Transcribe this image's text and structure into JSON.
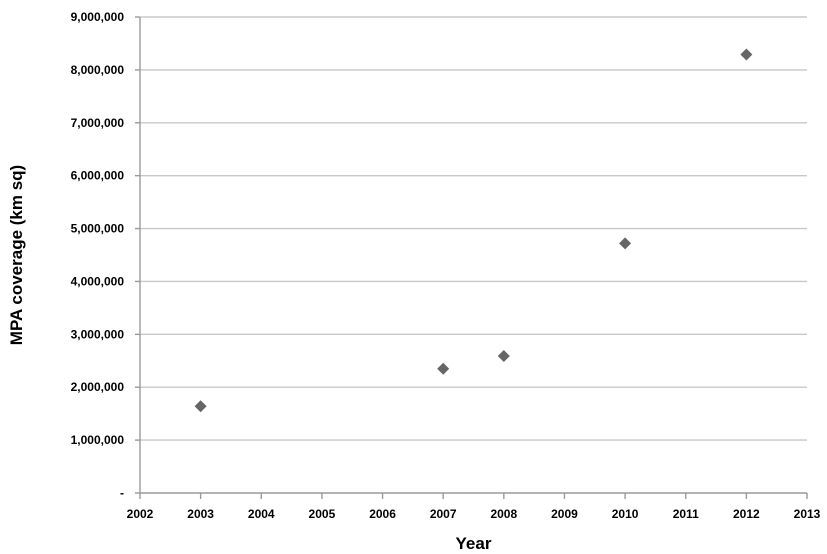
{
  "chart_data": {
    "type": "scatter",
    "title": "",
    "xlabel": "Year",
    "ylabel": "MPA coverage (km sq)",
    "xlim": [
      2002,
      2013
    ],
    "ylim": [
      0,
      9000000
    ],
    "x_ticks": [
      "2002",
      "2003",
      "2004",
      "2005",
      "2006",
      "2007",
      "2008",
      "2009",
      "2010",
      "2011",
      "2012",
      "2013"
    ],
    "y_ticks": [
      "-",
      "1,000,000",
      "2,000,000",
      "3,000,000",
      "4,000,000",
      "5,000,000",
      "6,000,000",
      "7,000,000",
      "8,000,000",
      "9,000,000"
    ],
    "grid": "horizontal",
    "marker": "diamond",
    "colors": {
      "point": "#666666",
      "grid": "#c8c8c8",
      "axis": "#9a9a9a"
    },
    "series": [
      {
        "x": [
          2003,
          2007,
          2008,
          2010,
          2012
        ],
        "y": [
          1640000,
          2350000,
          2590000,
          4720000,
          8290000
        ]
      }
    ]
  }
}
